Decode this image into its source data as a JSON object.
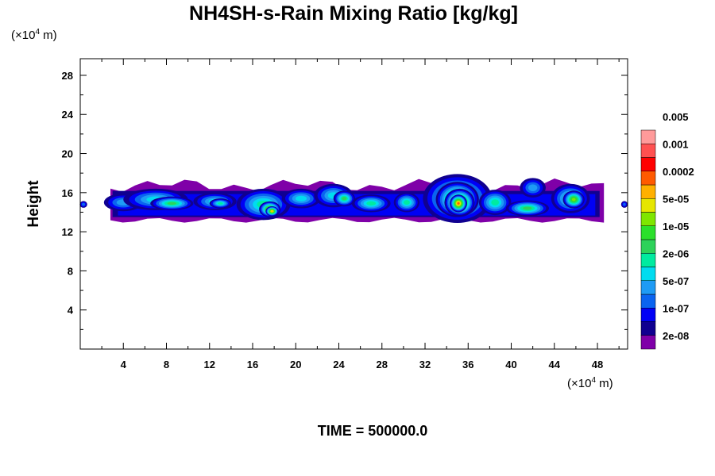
{
  "chart_data": {
    "type": "heatmap",
    "title": "NH4SH-s-Rain Mixing Ratio [kg/kg]",
    "ylabel": "Height",
    "xlabel": "",
    "x_unit_prefix": "(×10",
    "x_unit_exp": "4",
    "x_unit_suffix": " m)",
    "y_unit_prefix": "(×10",
    "y_unit_exp": "4",
    "y_unit_suffix": " m)",
    "xlim": [
      0,
      50.8
    ],
    "ylim": [
      0,
      29.7
    ],
    "x_ticks": [
      4,
      8,
      12,
      16,
      20,
      24,
      28,
      32,
      36,
      40,
      44,
      48
    ],
    "y_ticks": [
      4,
      8,
      12,
      16,
      20,
      24,
      28
    ],
    "x_ticks_labels": [
      "4",
      "8",
      "12",
      "16",
      "20",
      "24",
      "28",
      "32",
      "36",
      "40",
      "44",
      "48"
    ],
    "y_ticks_labels": [
      "4",
      "8",
      "12",
      "16",
      "20",
      "24",
      "28"
    ],
    "colorbar": {
      "colors": [
        "#7f00a8",
        "#100090",
        "#0000f5",
        "#0a64f0",
        "#1e9bf5",
        "#00dcf0",
        "#00eba0",
        "#2dd25a",
        "#2be02b",
        "#7fe600",
        "#e6e600",
        "#ffb000",
        "#ff5a00",
        "#ff0000",
        "#ff5050",
        "#ff9a9a"
      ],
      "labels": [
        "2e-08",
        "1e-07",
        "5e-07",
        "2e-06",
        "1e-05",
        "5e-05",
        "0.0002",
        "0.001",
        "0.005"
      ]
    },
    "layer_base": 13.5,
    "layer_top": 16.5,
    "cells": [
      {
        "x": 0.3,
        "y": 14.8,
        "rx": 0.35,
        "ry": 0.35,
        "level": 3
      },
      {
        "x": 50.5,
        "y": 14.8,
        "rx": 0.3,
        "ry": 0.35,
        "level": 3
      },
      {
        "x": 4.0,
        "y": 15.0,
        "rx": 1.8,
        "ry": 0.9,
        "level": 4
      },
      {
        "x": 7.0,
        "y": 15.3,
        "rx": 3.0,
        "ry": 1.1,
        "level": 5
      },
      {
        "x": 8.5,
        "y": 14.9,
        "rx": 2.0,
        "ry": 0.7,
        "level": 7
      },
      {
        "x": 12.5,
        "y": 15.1,
        "rx": 2.0,
        "ry": 0.9,
        "level": 5
      },
      {
        "x": 13.0,
        "y": 14.9,
        "rx": 1.0,
        "ry": 0.5,
        "level": 6
      },
      {
        "x": 17.0,
        "y": 14.8,
        "rx": 2.5,
        "ry": 1.6,
        "level": 6
      },
      {
        "x": 17.6,
        "y": 14.3,
        "rx": 1.0,
        "ry": 0.8,
        "level": 10
      },
      {
        "x": 17.8,
        "y": 14.1,
        "rx": 0.6,
        "ry": 0.5,
        "level": 11
      },
      {
        "x": 20.5,
        "y": 15.4,
        "rx": 1.8,
        "ry": 1.0,
        "level": 5
      },
      {
        "x": 23.5,
        "y": 15.7,
        "rx": 1.8,
        "ry": 1.2,
        "level": 5
      },
      {
        "x": 24.5,
        "y": 15.4,
        "rx": 1.0,
        "ry": 0.8,
        "level": 7
      },
      {
        "x": 27.0,
        "y": 14.9,
        "rx": 1.8,
        "ry": 0.9,
        "level": 6
      },
      {
        "x": 30.3,
        "y": 15.0,
        "rx": 1.2,
        "ry": 1.0,
        "level": 6
      },
      {
        "x": 35.0,
        "y": 15.4,
        "rx": 3.2,
        "ry": 2.5,
        "level": 7
      },
      {
        "x": 35.0,
        "y": 15.3,
        "rx": 2.0,
        "ry": 1.8,
        "level": 10
      },
      {
        "x": 35.2,
        "y": 15.0,
        "rx": 1.4,
        "ry": 1.4,
        "level": 11
      },
      {
        "x": 35.1,
        "y": 14.9,
        "rx": 0.8,
        "ry": 0.9,
        "level": 12
      },
      {
        "x": 38.5,
        "y": 15.0,
        "rx": 1.5,
        "ry": 1.3,
        "level": 6
      },
      {
        "x": 41.5,
        "y": 14.4,
        "rx": 2.0,
        "ry": 0.8,
        "level": 7
      },
      {
        "x": 42.0,
        "y": 16.5,
        "rx": 1.2,
        "ry": 1.0,
        "level": 4
      },
      {
        "x": 45.5,
        "y": 15.4,
        "rx": 1.8,
        "ry": 1.5,
        "level": 6
      },
      {
        "x": 45.8,
        "y": 15.3,
        "rx": 1.0,
        "ry": 0.9,
        "level": 9
      }
    ]
  },
  "footer": {
    "time_text": "TIME = 500000.0"
  }
}
